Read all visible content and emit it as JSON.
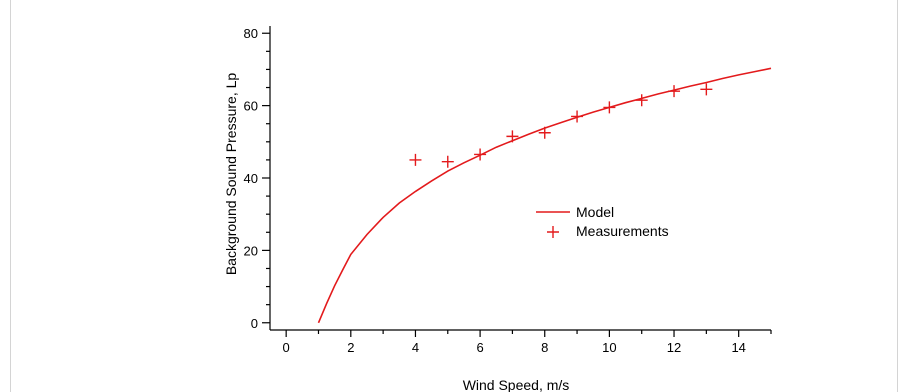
{
  "chart_data": {
    "type": "line",
    "title": "",
    "xlabel": "Wind Speed, m/s",
    "ylabel": "Background Sound Pressure, Lp",
    "xlim": [
      -0.5,
      15
    ],
    "ylim": [
      -2,
      82
    ],
    "xticks": [
      0,
      2,
      4,
      6,
      8,
      10,
      12,
      14
    ],
    "yticks": [
      0,
      20,
      40,
      60,
      80
    ],
    "grid": false,
    "legend": "center-right",
    "series": [
      {
        "name": "Model",
        "kind": "line",
        "color": "#e31a1c",
        "x": [
          1,
          1.25,
          1.5,
          1.75,
          2,
          2.5,
          3,
          3.5,
          4,
          4.5,
          5,
          5.5,
          6,
          6.5,
          7,
          7.5,
          8,
          8.5,
          9,
          9.5,
          10,
          10.5,
          11,
          11.5,
          12,
          12.5,
          13,
          13.5,
          14,
          14.5,
          15
        ],
        "y": [
          0,
          5.3,
          10.2,
          14.6,
          18.9,
          24.4,
          29.1,
          33.1,
          36.3,
          39.2,
          41.9,
          44.2,
          46.3,
          48.5,
          50.3,
          52.1,
          53.8,
          55.3,
          56.8,
          58.2,
          59.5,
          60.8,
          62.0,
          63.2,
          64.3,
          65.4,
          66.4,
          67.5,
          68.5,
          69.4,
          70.3
        ]
      },
      {
        "name": "Measurements",
        "kind": "scatter",
        "marker": "+",
        "color": "#e31a1c",
        "x": [
          4,
          5,
          6,
          7,
          8,
          9,
          10,
          11,
          12,
          13
        ],
        "y": [
          45,
          44.5,
          46.5,
          51.5,
          52.5,
          57,
          59.5,
          61.5,
          64,
          64.5
        ]
      }
    ]
  }
}
